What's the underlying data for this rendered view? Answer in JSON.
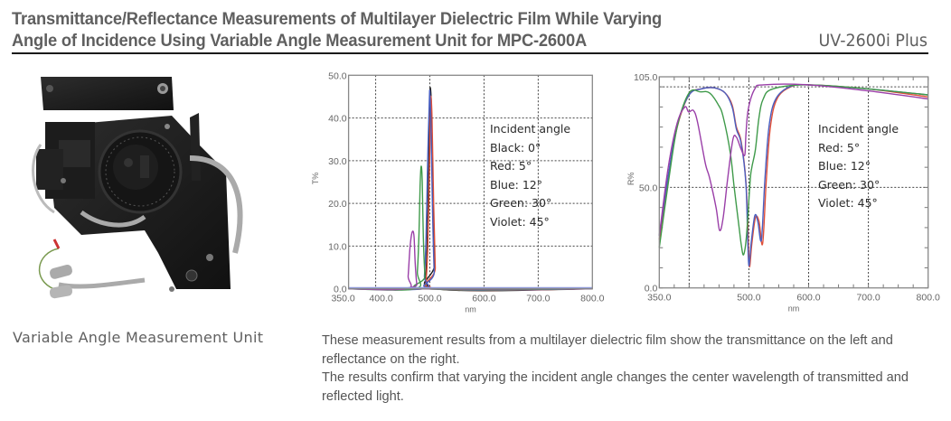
{
  "header": {
    "title_line1": "Transmittance/Reflectance Measurements of Multilayer Dielectric Film While Varying",
    "title_line2": "Angle of Incidence Using Variable Angle Measurement Unit for MPC-2600A",
    "model": "UV-2600i Plus"
  },
  "photo": {
    "icon": "variable-angle-unit-photo",
    "caption": "Variable Angle Measurement Unit"
  },
  "description": {
    "paragraph1": "These measurement results from a multilayer dielectric film show the transmittance on the left and reflectance on the right.",
    "paragraph2": "The results confirm that varying the incident angle changes the center wavelength of transmitted and reflected light."
  },
  "legend_left": {
    "title": "Incident angle",
    "items": [
      "Black: 0°",
      "Red: 5°",
      "Blue: 12°",
      "Green: 30°",
      "Violet: 45°"
    ]
  },
  "legend_right": {
    "title": "Incident angle",
    "items": [
      "Red: 5°",
      "Blue: 12°",
      "Green: 30°",
      "Violet: 45°"
    ]
  },
  "colors": {
    "black": "#1a1a1a",
    "red": "#e0503a",
    "blue": "#4a5fc0",
    "green": "#3f9a4a",
    "violet": "#9a3fa8",
    "baseline": "#8f9ad8",
    "grid": "#555555",
    "axis": "#777777"
  },
  "chart_data": [
    {
      "type": "line",
      "title": "Transmittance",
      "xlabel": "nm",
      "ylabel": "T%",
      "xlim": [
        350,
        800
      ],
      "ylim": [
        0,
        50
      ],
      "xticks": [
        350,
        400,
        500,
        600,
        700,
        800
      ],
      "xtick_labels": [
        "350.0",
        "400.0",
        "500.0",
        "600.0",
        "700.0",
        "800.0"
      ],
      "yticks": [
        0,
        10,
        20,
        30,
        40,
        50
      ],
      "ytick_labels": [
        "0.0",
        "10.0",
        "20.0",
        "30.0",
        "40.0",
        "50.0"
      ],
      "grid": true,
      "legend_position": "upper right (inside)",
      "series": [
        {
          "name": "Black: 0°",
          "color": "#1a1a1a",
          "x": [
            350,
            488,
            492,
            495,
            498,
            500,
            501,
            503,
            506,
            509,
            512,
            800
          ],
          "y": [
            0,
            0,
            2,
            10,
            28,
            44,
            47,
            42,
            22,
            6,
            0,
            0
          ]
        },
        {
          "name": "Red: 5°",
          "color": "#e0503a",
          "x": [
            350,
            489,
            493,
            496,
            499,
            501,
            502,
            504,
            507,
            510,
            513,
            800
          ],
          "y": [
            0,
            0,
            2,
            9,
            26,
            42,
            45,
            40,
            20,
            5,
            0,
            0
          ]
        },
        {
          "name": "Blue: 12°",
          "color": "#4a5fc0",
          "x": [
            350,
            487,
            490,
            493,
            496,
            499,
            500,
            502,
            505,
            508,
            511,
            800
          ],
          "y": [
            0,
            0,
            3,
            12,
            30,
            44,
            46,
            38,
            18,
            4,
            0,
            0
          ]
        },
        {
          "name": "Green: 30°",
          "color": "#3f9a4a",
          "x": [
            350,
            473,
            477,
            480,
            482,
            484,
            486,
            488,
            491,
            494,
            800
          ],
          "y": [
            0,
            0,
            4,
            13,
            24,
            28.7,
            25,
            12,
            3,
            0,
            0
          ]
        },
        {
          "name": "Violet: 45°",
          "color": "#9a3fa8",
          "x": [
            350,
            457,
            460,
            463,
            466,
            469,
            471,
            473,
            476,
            479,
            800
          ],
          "y": [
            0,
            0,
            3,
            9,
            12.5,
            13.5,
            12,
            6,
            1,
            0,
            0
          ]
        }
      ]
    },
    {
      "type": "line",
      "title": "Reflectance",
      "xlabel": "nm",
      "ylabel": "R%",
      "xlim": [
        350,
        800
      ],
      "ylim": [
        0,
        105
      ],
      "xticks": [
        350,
        500,
        600,
        700,
        800
      ],
      "xtick_labels": [
        "350.0",
        "500.0",
        "600.0",
        "700.0",
        "800.0"
      ],
      "yticks": [
        0,
        50,
        105
      ],
      "ytick_labels": [
        "0.0",
        "50.0",
        "105.0"
      ],
      "grid": true,
      "legend_position": "right (inside)",
      "series": [
        {
          "name": "Red: 5°",
          "color": "#e0503a",
          "x": [
            350,
            365,
            380,
            400,
            420,
            442,
            460,
            472,
            479,
            487,
            495,
            499,
            501,
            505,
            511,
            517,
            523,
            529,
            536,
            547,
            570,
            600,
            700,
            800
          ],
          "y": [
            24,
            55,
            80,
            96,
            99,
            99.5,
            97,
            91,
            80,
            73,
            53,
            24,
            10.5,
            22,
            35,
            33,
            22,
            53,
            80,
            94,
            100,
            101,
            99,
            95
          ]
        },
        {
          "name": "Blue: 12°",
          "color": "#4a5fc0",
          "x": [
            350,
            365,
            380,
            400,
            420,
            442,
            460,
            472,
            479,
            487,
            495,
            498,
            500,
            504,
            510,
            515,
            521,
            527,
            534,
            545,
            568,
            600,
            700,
            800
          ],
          "y": [
            26,
            56,
            81,
            96,
            99,
            99.5,
            97,
            90,
            79,
            72,
            52,
            24,
            11,
            23,
            36,
            33,
            24,
            55,
            81,
            94,
            100,
            101,
            99,
            96
          ]
        },
        {
          "name": "Green: 30°",
          "color": "#3f9a4a",
          "x": [
            350,
            365,
            380,
            400,
            419,
            434,
            449,
            457,
            469,
            475,
            484,
            487,
            491,
            496,
            502,
            505,
            511,
            517,
            524,
            540,
            600,
            700,
            800
          ],
          "y": [
            20,
            52,
            80,
            97,
            97.5,
            97,
            91,
            85,
            67,
            51,
            29,
            22,
            16.5,
            26,
            53,
            60,
            69,
            85,
            94,
            99,
            101,
            99,
            96
          ]
        },
        {
          "name": "Violet: 45°",
          "color": "#9a3fa8",
          "x": [
            350,
            365,
            380,
            393,
            399,
            407,
            414,
            427,
            434,
            445,
            451,
            457,
            464,
            473,
            479,
            487,
            493,
            495,
            499,
            510,
            524,
            600,
            700,
            800
          ],
          "y": [
            26,
            60,
            82,
            90,
            87.5,
            88.3,
            82.5,
            62,
            55,
            40,
            28.6,
            35,
            53,
            73.5,
            75,
            69,
            66,
            76,
            89,
            99,
            101,
            101,
            98,
            94
          ]
        }
      ]
    }
  ]
}
